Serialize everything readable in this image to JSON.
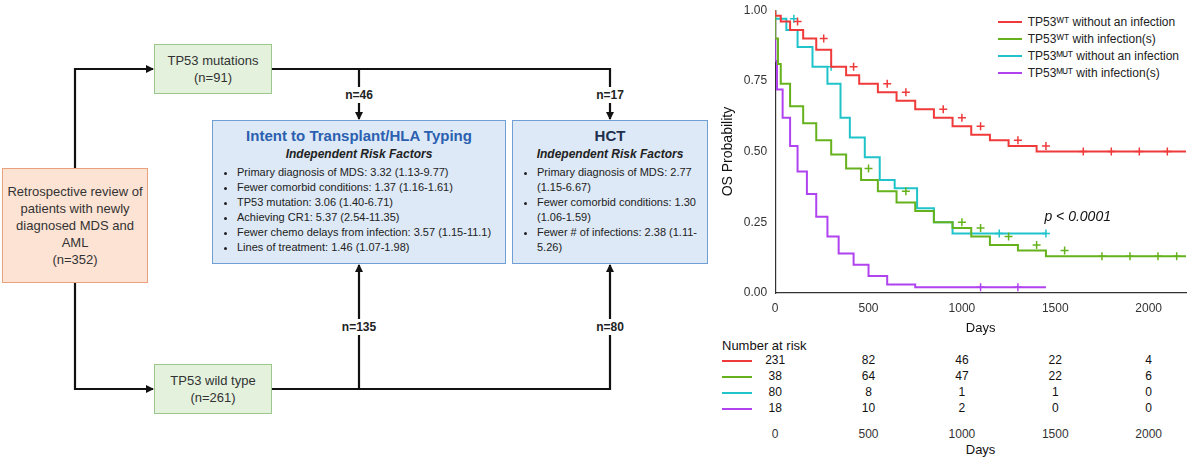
{
  "diagram": {
    "source": {
      "lines": [
        "Retrospective review of",
        "patients with newly",
        "diagnosed MDS and AML",
        "(n=352)"
      ]
    },
    "groups": [
      {
        "lines": [
          "TP53 mutations",
          "(n=91)"
        ],
        "to_intent": "n=46",
        "to_hct": "n=17"
      },
      {
        "lines": [
          "TP53 wild type",
          "(n=261)"
        ],
        "to_intent": "n=135",
        "to_hct": "n=80"
      }
    ],
    "boxes": [
      {
        "title": "Intent to Transplant/HLA Typing",
        "subtitle": "Independent Risk Factors",
        "items": [
          "Primary diagnosis of MDS: 3.32 (1.13-9.77)",
          "Fewer comorbid conditions: 1.37 (1.16-1.61)",
          "TP53 mutation: 3.06 (1.40-6.71)",
          "Achieving CR1: 5.37 (2.54-11.35)",
          "Fewer chemo delays from infection: 3.57 (1.15-11.1)",
          "Lines of treatment: 1.46 (1.07-1.98)"
        ]
      },
      {
        "title": "HCT",
        "subtitle": "Independent Risk Factors",
        "items": [
          "Primary diagnosis of MDS: 2.77 (1.15-6.67)",
          "Fewer comorbid conditions: 1.30 (1.06-1.59)",
          "Fewer # of infections: 2.38 (1.11-5.26)"
        ]
      }
    ]
  },
  "chart_data": {
    "type": "line",
    "xlabel": "Days",
    "ylabel": "OS Probability",
    "xlim": [
      0,
      2200
    ],
    "xticks": [
      0,
      500,
      1000,
      1500,
      2000
    ],
    "ylim": [
      0,
      1
    ],
    "yticks": [
      {
        "value": 0,
        "label": "0.00"
      },
      {
        "value": 0.25,
        "label": "0.25"
      },
      {
        "value": 0.5,
        "label": "0.50"
      },
      {
        "value": 0.75,
        "label": "0.75"
      },
      {
        "value": 1,
        "label": "1.00"
      }
    ],
    "grid": false,
    "legend": "upper right",
    "line_style": "steps",
    "marker": "cross",
    "series": [
      {
        "name": "TP53ᵂᵀ without an infection",
        "color": "#f03a3a",
        "x": [
          0,
          30,
          80,
          150,
          220,
          300,
          380,
          450,
          550,
          650,
          750,
          850,
          950,
          1050,
          1150,
          1250,
          1400,
          1550,
          2200
        ],
        "values": [
          1,
          0.98,
          0.96,
          0.93,
          0.9,
          0.86,
          0.8,
          0.77,
          0.74,
          0.71,
          0.68,
          0.65,
          0.62,
          0.59,
          0.56,
          0.54,
          0.52,
          0.5,
          0.5
        ],
        "censored_x": [
          120,
          260,
          420,
          600,
          700,
          900,
          1000,
          1100,
          1300,
          1450,
          1650,
          1800,
          1950,
          2100
        ],
        "censored_values": [
          0.96,
          0.9,
          0.8,
          0.74,
          0.71,
          0.65,
          0.62,
          0.59,
          0.54,
          0.52,
          0.5,
          0.5,
          0.5,
          0.5
        ]
      },
      {
        "name": "TP53ᵂᵀ with infection(s)",
        "color": "#66b21d",
        "x": [
          0,
          15,
          30,
          80,
          150,
          220,
          300,
          380,
          460,
          550,
          650,
          750,
          850,
          950,
          1050,
          1150,
          1300,
          1450,
          1650,
          2200
        ],
        "values": [
          1,
          0.9,
          0.81,
          0.74,
          0.66,
          0.6,
          0.54,
          0.49,
          0.44,
          0.4,
          0.36,
          0.32,
          0.29,
          0.25,
          0.23,
          0.2,
          0.17,
          0.15,
          0.13,
          0.13
        ],
        "censored_x": [
          500,
          700,
          1000,
          1100,
          1250,
          1400,
          1550,
          1750,
          1900,
          2050,
          2150
        ],
        "censored_values": [
          0.44,
          0.36,
          0.25,
          0.23,
          0.2,
          0.17,
          0.15,
          0.13,
          0.13,
          0.13,
          0.13
        ]
      },
      {
        "name": "TP53ᴹᵁᵀ without an infection",
        "color": "#1fc3c9",
        "x": [
          0,
          60,
          120,
          200,
          280,
          350,
          400,
          480,
          560,
          640,
          760,
          850,
          950,
          1050,
          1450
        ],
        "values": [
          1,
          0.97,
          0.93,
          0.87,
          0.8,
          0.74,
          0.62,
          0.55,
          0.48,
          0.4,
          0.37,
          0.3,
          0.25,
          0.21,
          0.21
        ],
        "censored_x": [
          100,
          300,
          1200,
          1450
        ],
        "censored_values": [
          0.97,
          0.8,
          0.21,
          0.21
        ]
      },
      {
        "name": "TP53ᴹᵁᵀ with infection(s)",
        "color": "#b042f0",
        "x": [
          0,
          10,
          40,
          80,
          120,
          170,
          220,
          280,
          340,
          420,
          500,
          600,
          750,
          900,
          1450
        ],
        "values": [
          1,
          0.82,
          0.72,
          0.62,
          0.52,
          0.43,
          0.35,
          0.27,
          0.2,
          0.14,
          0.1,
          0.06,
          0.03,
          0.02,
          0.02
        ],
        "censored_x": [
          1100,
          1300
        ],
        "censored_values": [
          0.02,
          0.02
        ]
      }
    ],
    "annotations": [
      {
        "text": "p < 0.0001",
        "x": 1620,
        "y": 0.27
      }
    ],
    "risk_table": {
      "title": "Number at risk",
      "times": [
        0,
        500,
        1000,
        1500,
        2000
      ],
      "counts": [
        [
          231,
          82,
          46,
          22,
          4
        ],
        [
          38,
          64,
          47,
          22,
          6
        ],
        [
          80,
          8,
          1,
          1,
          0
        ],
        [
          18,
          10,
          2,
          0,
          0
        ]
      ],
      "xlabel": "Days"
    }
  }
}
